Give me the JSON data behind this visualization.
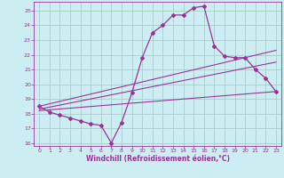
{
  "title": "",
  "xlabel": "Windchill (Refroidissement éolien,°C)",
  "bg_color": "#cceef2",
  "grid_color": "#aacccc",
  "line_color": "#993399",
  "xlim": [
    -0.5,
    23.5
  ],
  "ylim": [
    15.8,
    25.6
  ],
  "yticks": [
    16,
    17,
    18,
    19,
    20,
    21,
    22,
    23,
    24,
    25
  ],
  "xticks": [
    0,
    1,
    2,
    3,
    4,
    5,
    6,
    7,
    8,
    9,
    10,
    11,
    12,
    13,
    14,
    15,
    16,
    17,
    18,
    19,
    20,
    21,
    22,
    23
  ],
  "main_x": [
    0,
    1,
    2,
    3,
    4,
    5,
    6,
    7,
    8,
    9,
    10,
    11,
    12,
    13,
    14,
    15,
    16,
    17,
    18,
    19,
    20,
    21,
    22,
    23
  ],
  "main_y": [
    18.5,
    18.1,
    17.9,
    17.7,
    17.5,
    17.3,
    17.2,
    16.0,
    17.4,
    19.4,
    21.8,
    23.5,
    24.0,
    24.7,
    24.7,
    25.2,
    25.3,
    22.6,
    21.9,
    21.8,
    21.8,
    21.0,
    20.4,
    19.5
  ],
  "line1_x": [
    0,
    23
  ],
  "line1_y": [
    18.5,
    22.3
  ],
  "line2_x": [
    0,
    23
  ],
  "line2_y": [
    18.3,
    21.5
  ],
  "line3_x": [
    0,
    23
  ],
  "line3_y": [
    18.2,
    19.5
  ]
}
